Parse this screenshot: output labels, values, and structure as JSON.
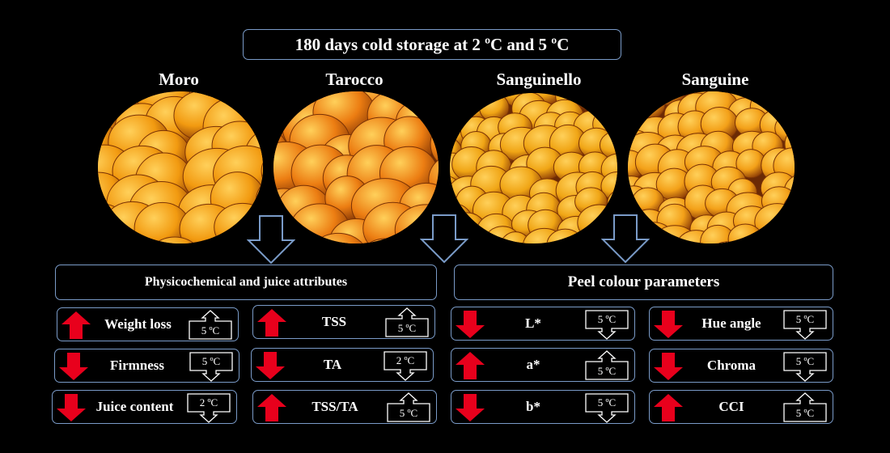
{
  "title": "180 days cold storage at 2 ºC and 5 ºC",
  "cultivars": [
    {
      "name": "Moro",
      "tone": "#f29a10"
    },
    {
      "name": "Tarocco",
      "tone": "#ec7d12"
    },
    {
      "name": "Sanguinello",
      "tone": "#f0a515"
    },
    {
      "name": "Sanguine",
      "tone": "#f3a018"
    }
  ],
  "sections": {
    "left": "Physicochemical  and juice attributes",
    "right": "Peel colour parameters"
  },
  "colors": {
    "border": "#7a9bc8",
    "increase": "#e8001c",
    "decrease": "#e8001c",
    "background": "#000000"
  },
  "attributes": [
    {
      "label": "Weight loss",
      "trend": "increase",
      "temp": "5 ºC",
      "arrow": "up"
    },
    {
      "label": "TSS",
      "trend": "increase",
      "temp": "5 ºC",
      "arrow": "up"
    },
    {
      "label": "Firmness",
      "trend": "decrease",
      "temp": "5 ºC",
      "arrow": "down"
    },
    {
      "label": "TA",
      "trend": "decrease",
      "temp": "2 ºC",
      "arrow": "down"
    },
    {
      "label": "Juice content",
      "trend": "decrease",
      "temp": "2 ºC",
      "arrow": "down"
    },
    {
      "label": "TSS/TA",
      "trend": "increase",
      "temp": "5 ºC",
      "arrow": "up"
    },
    {
      "label": "L*",
      "trend": "decrease",
      "temp": "5 ºC",
      "arrow": "down"
    },
    {
      "label": "Hue angle",
      "trend": "decrease",
      "temp": "5 ºC",
      "arrow": "down"
    },
    {
      "label": "a*",
      "trend": "increase",
      "temp": "5 ºC",
      "arrow": "up"
    },
    {
      "label": "Chroma",
      "trend": "decrease",
      "temp": "5 ºC",
      "arrow": "down"
    },
    {
      "label": "b*",
      "trend": "decrease",
      "temp": "5 ºC",
      "arrow": "down"
    },
    {
      "label": "CCI",
      "trend": "increase",
      "temp": "5 ºC",
      "arrow": "up"
    }
  ]
}
